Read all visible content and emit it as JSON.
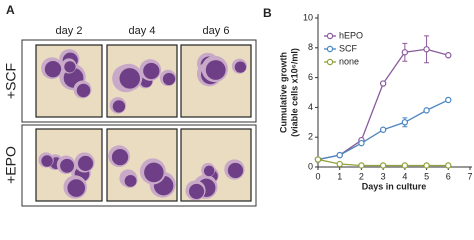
{
  "panel_a": {
    "label": "A",
    "columns": [
      "day 2",
      "day 4",
      "day 6"
    ],
    "rows": [
      "+SCF",
      "+EPO"
    ]
  },
  "panel_b_label": "B",
  "chart_data": {
    "type": "line",
    "xlabel": "Days in culture",
    "ylabel": [
      "Cumulative growth",
      "(viable cells x10⁶/ml)"
    ],
    "x": [
      0,
      1,
      2,
      3,
      4,
      5,
      6
    ],
    "xlim": [
      0,
      7
    ],
    "xticks": [
      0,
      1,
      2,
      3,
      4,
      5,
      6,
      7
    ],
    "ylim": [
      0,
      10
    ],
    "yticks": [
      0,
      2,
      4,
      6,
      8,
      10
    ],
    "legend": "upper left",
    "series": [
      {
        "name": "hEPO",
        "color": "#8a5a9c",
        "values": [
          0.5,
          0.8,
          1.8,
          5.6,
          7.7,
          7.9,
          7.5
        ],
        "errors": [
          null,
          null,
          null,
          null,
          0.6,
          0.9,
          null
        ]
      },
      {
        "name": "SCF",
        "color": "#4a86c0",
        "values": [
          0.5,
          0.8,
          1.6,
          2.5,
          3.0,
          3.8,
          4.5
        ],
        "errors": [
          null,
          null,
          null,
          null,
          0.3,
          null,
          null
        ]
      },
      {
        "name": "none",
        "color": "#8fa33a",
        "values": [
          0.5,
          0.2,
          0.1,
          0.1,
          0.1,
          0.1,
          0.1
        ],
        "errors": [
          null,
          null,
          null,
          null,
          null,
          null,
          null
        ]
      }
    ]
  }
}
